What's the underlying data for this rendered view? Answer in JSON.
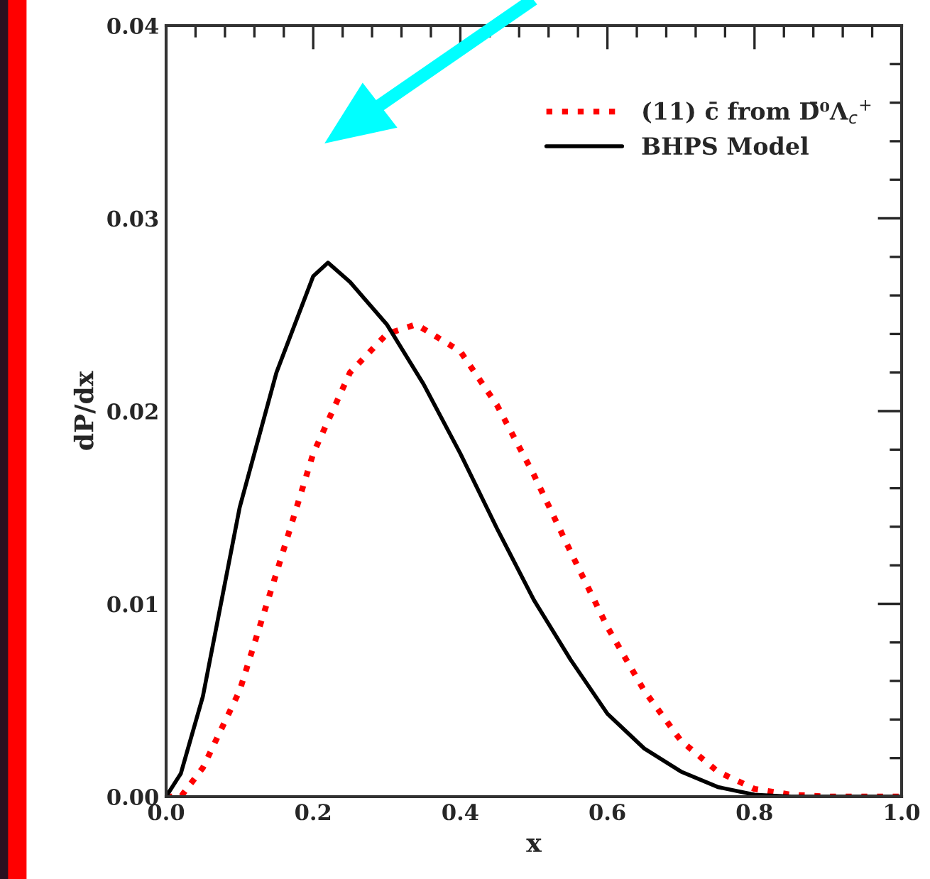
{
  "chart_data": {
    "type": "line",
    "xlabel": "x",
    "ylabel": "dP/dx",
    "xlim": [
      0,
      1.0
    ],
    "ylim": [
      0,
      0.04
    ],
    "xticks": [
      {
        "value": 0,
        "label": "0.0"
      },
      {
        "value": 0.04,
        "label": null
      },
      {
        "value": 0.08,
        "label": null
      },
      {
        "value": 0.12,
        "label": null
      },
      {
        "value": 0.16,
        "label": null
      },
      {
        "value": 0.2,
        "label": "0.2"
      },
      {
        "value": 0.24,
        "label": null
      },
      {
        "value": 0.28,
        "label": null
      },
      {
        "value": 0.32,
        "label": null
      },
      {
        "value": 0.36,
        "label": null
      },
      {
        "value": 0.4,
        "label": "0.4"
      },
      {
        "value": 0.44,
        "label": null
      },
      {
        "value": 0.48,
        "label": null
      },
      {
        "value": 0.52,
        "label": null
      },
      {
        "value": 0.56,
        "label": null
      },
      {
        "value": 0.6,
        "label": "0.6"
      },
      {
        "value": 0.64,
        "label": null
      },
      {
        "value": 0.68,
        "label": null
      },
      {
        "value": 0.72,
        "label": null
      },
      {
        "value": 0.76,
        "label": null
      },
      {
        "value": 0.8,
        "label": "0.8"
      },
      {
        "value": 0.84,
        "label": null
      },
      {
        "value": 0.88,
        "label": null
      },
      {
        "value": 0.92,
        "label": null
      },
      {
        "value": 0.96,
        "label": null
      },
      {
        "value": 1.0,
        "label": "1.0"
      }
    ],
    "yticks": [
      {
        "value": 0,
        "label": "0.00"
      },
      {
        "value": 0.002,
        "label": null
      },
      {
        "value": 0.004,
        "label": null
      },
      {
        "value": 0.006,
        "label": null
      },
      {
        "value": 0.008,
        "label": null
      },
      {
        "value": 0.01,
        "label": "0.01"
      },
      {
        "value": 0.012,
        "label": null
      },
      {
        "value": 0.014,
        "label": null
      },
      {
        "value": 0.016,
        "label": null
      },
      {
        "value": 0.018,
        "label": null
      },
      {
        "value": 0.02,
        "label": "0.02"
      },
      {
        "value": 0.022,
        "label": null
      },
      {
        "value": 0.024,
        "label": null
      },
      {
        "value": 0.026,
        "label": null
      },
      {
        "value": 0.028,
        "label": null
      },
      {
        "value": 0.03,
        "label": "0.03"
      },
      {
        "value": 0.032,
        "label": null
      },
      {
        "value": 0.034,
        "label": null
      },
      {
        "value": 0.036,
        "label": null
      },
      {
        "value": 0.038,
        "label": null
      },
      {
        "value": 0.04,
        "label": "0.04"
      }
    ],
    "grid": false,
    "legend": "top right",
    "series": [
      {
        "name": "(11) c̄ from D̄⁰Λ$_{c}$$^{+}$",
        "color": "#ff0000",
        "line_style": "dotted",
        "x": [
          0,
          0.02,
          0.05,
          0.1,
          0.15,
          0.2,
          0.25,
          0.3,
          0.34,
          0.4,
          0.45,
          0.5,
          0.55,
          0.6,
          0.65,
          0.7,
          0.75,
          0.8,
          0.85,
          0.9,
          1.0
        ],
        "values": [
          0,
          0,
          0.0015,
          0.0055,
          0.0116,
          0.0178,
          0.022,
          0.024,
          0.0245,
          0.0231,
          0.0203,
          0.0167,
          0.0127,
          0.0088,
          0.0055,
          0.0029,
          0.0013,
          0.0004,
          0.0001,
          0,
          0
        ]
      },
      {
        "name": "BHPS Model",
        "color": "#000000",
        "line_style": "solid",
        "x": [
          0,
          0.02,
          0.05,
          0.1,
          0.15,
          0.2,
          0.22,
          0.25,
          0.3,
          0.35,
          0.4,
          0.45,
          0.5,
          0.55,
          0.6,
          0.65,
          0.7,
          0.75,
          0.8,
          0.85,
          1.0
        ],
        "values": [
          0,
          0.0012,
          0.0052,
          0.015,
          0.022,
          0.027,
          0.0277,
          0.0267,
          0.0245,
          0.0214,
          0.0178,
          0.0139,
          0.0102,
          0.0071,
          0.0043,
          0.0025,
          0.0013,
          0.0005,
          0.0001,
          0,
          0
        ]
      }
    ]
  }
}
